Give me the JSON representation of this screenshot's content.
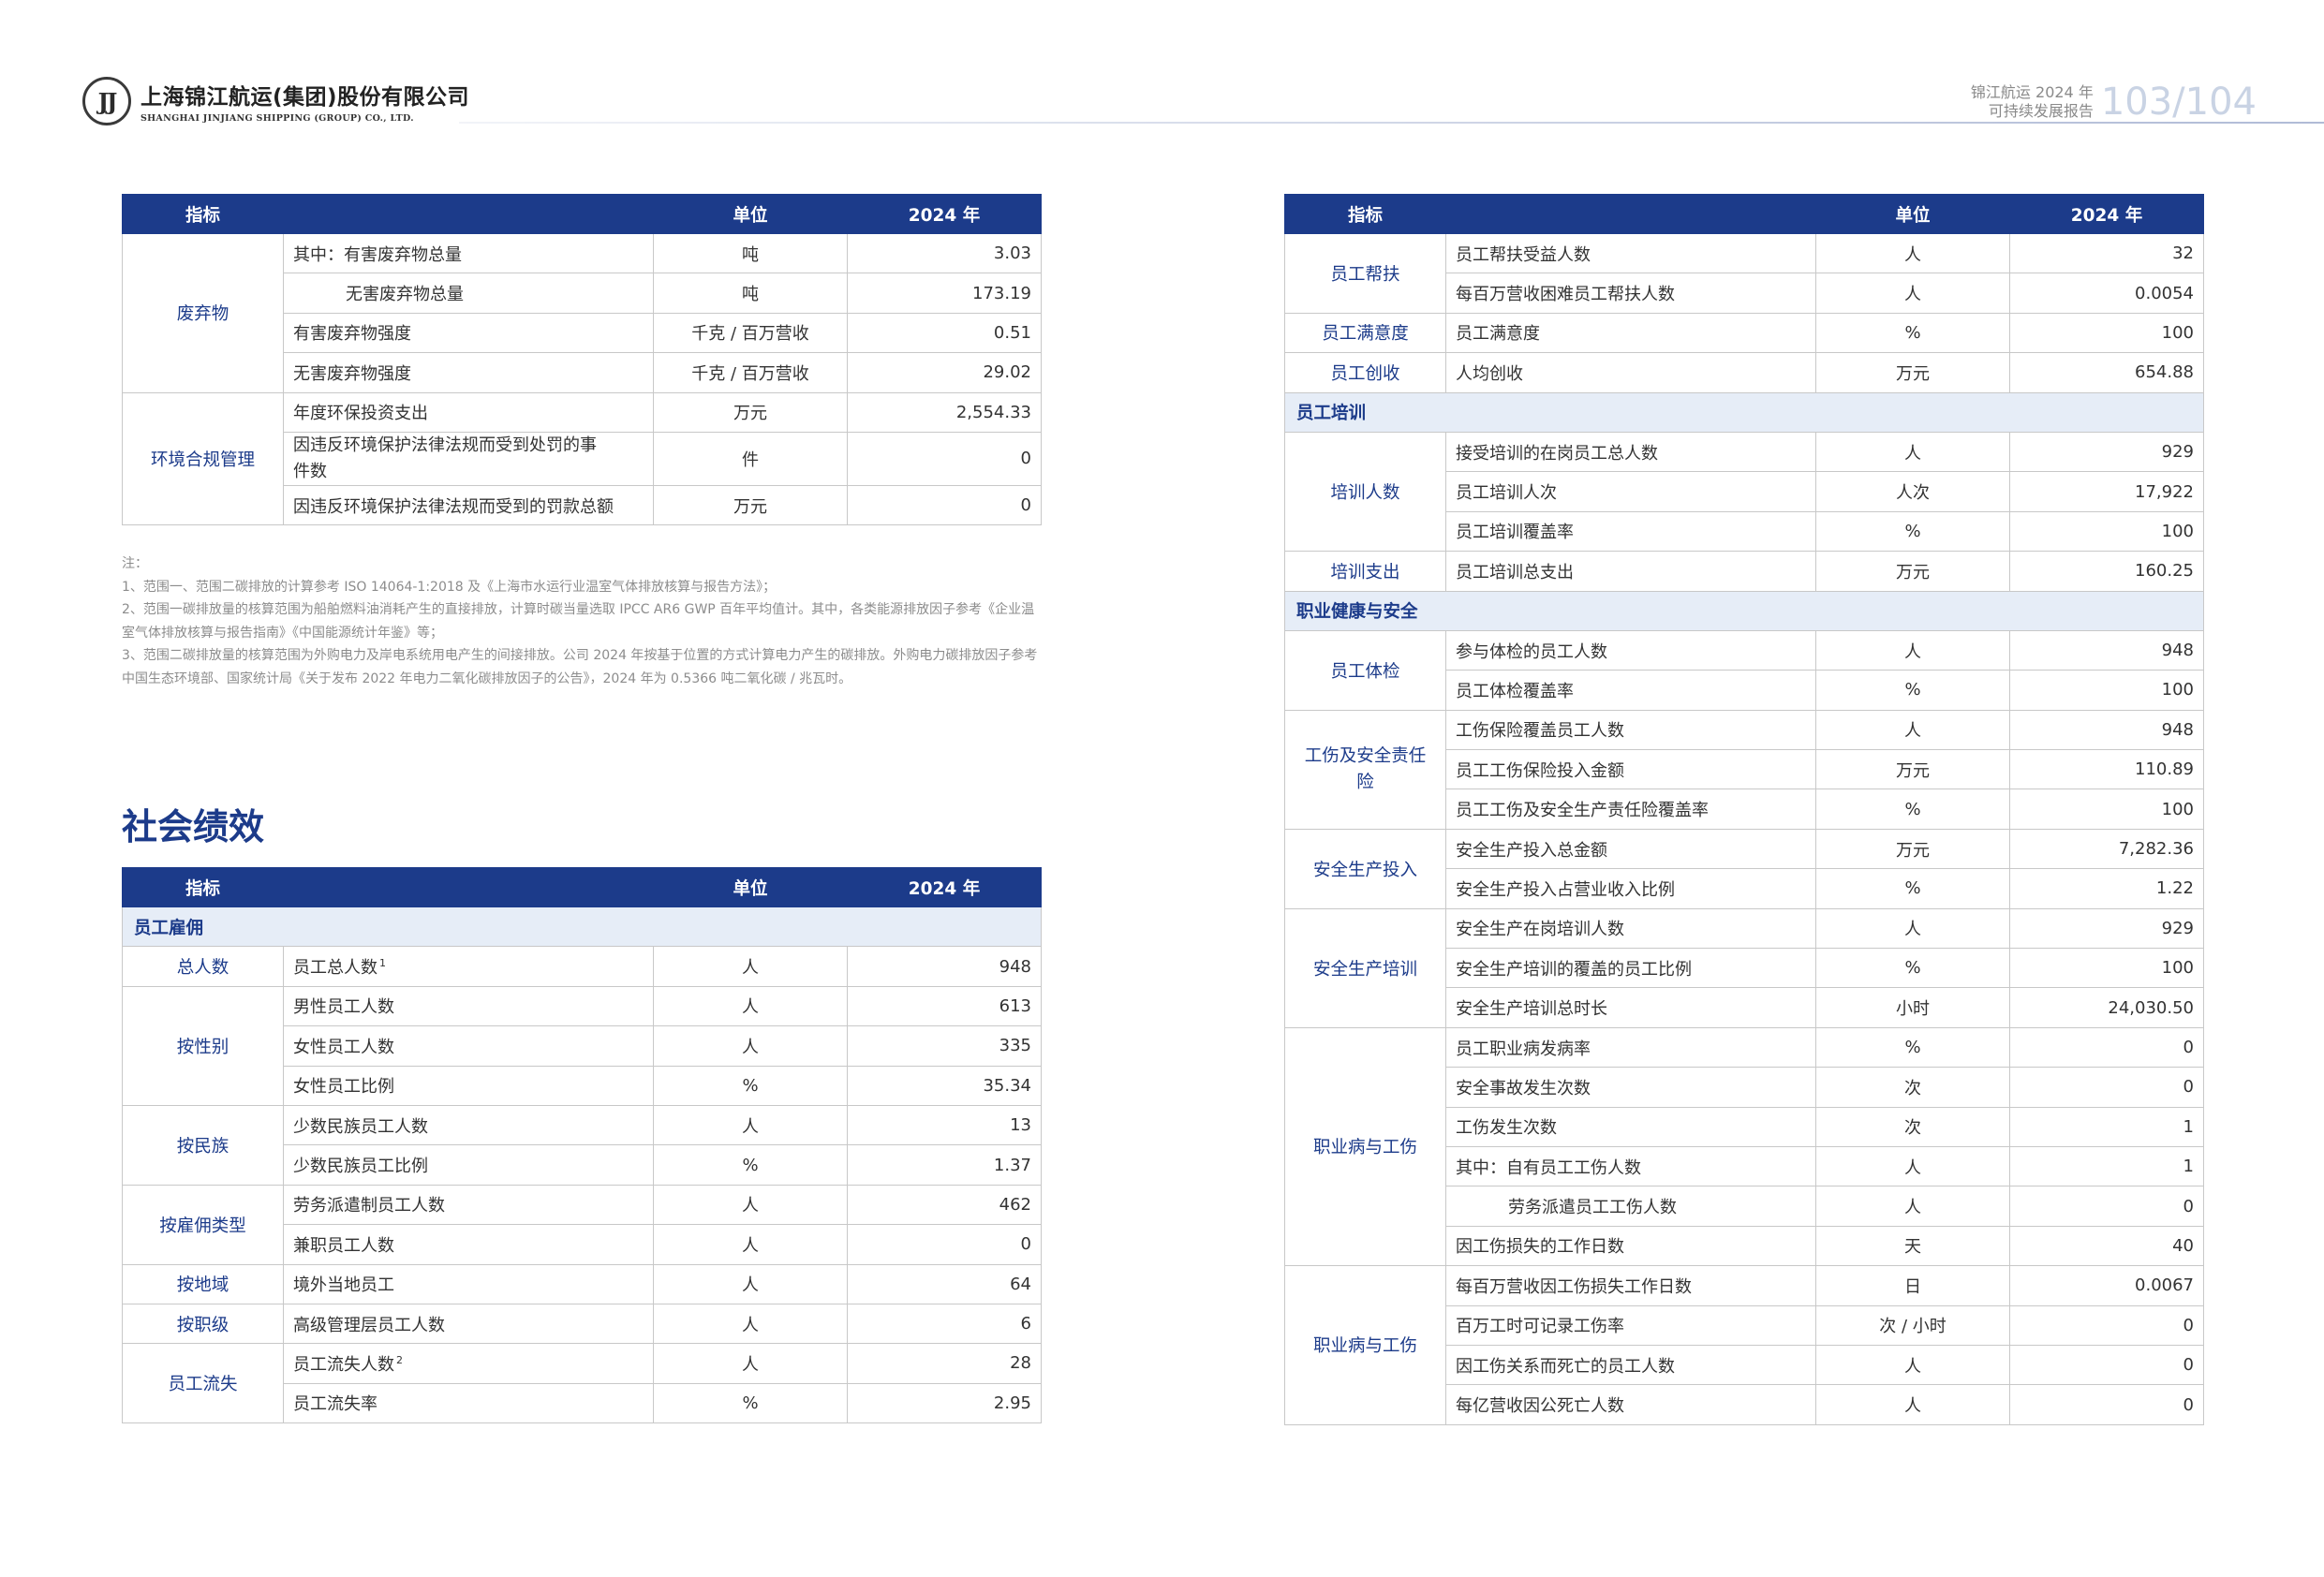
{
  "header": {
    "logo_mark": "JJ",
    "company_cn": "上海锦江航运(集团)股份有限公司",
    "company_en": "SHANGHAI JINJIANG SHIPPING (GROUP) CO., LTD.",
    "report_line1": "锦江航运 2024 年",
    "report_line2": "可持续发展报告",
    "page_numbers": "103/104"
  },
  "env_table": {
    "headers": {
      "indicator": "指标",
      "unit": "单位",
      "year": "2024 年"
    },
    "groups": [
      {
        "category": "废弃物",
        "rows": [
          {
            "label": "其中：有害废弃物总量",
            "unit": "吨",
            "value": "3.03"
          },
          {
            "label": "无害废弃物总量",
            "unit": "吨",
            "value": "173.19"
          },
          {
            "label": "有害废弃物强度",
            "unit": "千克 / 百万营收",
            "value": "0.51"
          },
          {
            "label": "无害废弃物强度",
            "unit": "千克 / 百万营收",
            "value": "29.02"
          }
        ]
      },
      {
        "category": "环境合规管理",
        "rows": [
          {
            "label": "年度环保投资支出",
            "unit": "万元",
            "value": "2,554.33"
          },
          {
            "label": "因违反环境保护法律法规而受到处罚的事件数",
            "unit": "件",
            "value": "0"
          },
          {
            "label": "因违反环境保护法律法规而受到的罚款总额",
            "unit": "万元",
            "value": "0"
          }
        ]
      }
    ]
  },
  "notes": {
    "title": "注：",
    "items": [
      "1、范围一、范围二碳排放的计算参考 ISO 14064-1:2018 及《上海市水运行业温室气体排放核算与报告方法》；",
      "2、范围一碳排放量的核算范围为船舶燃料油消耗产生的直接排放，计算时碳当量选取 IPCC AR6 GWP 百年平均值计。其中，各类能源排放因子参考《企业温室气体排放核算与报告指南》《中国能源统计年鉴》等；",
      "3、范围二碳排放量的核算范围为外购电力及岸电系统用电产生的间接排放。公司 2024 年按基于位置的方式计算电力产生的碳排放。外购电力碳排放因子参考中国生态环境部、国家统计局《关于发布 2022 年电力二氧化碳排放因子的公告》，2024 年为 0.5366 吨二氧化碳 / 兆瓦时。"
    ]
  },
  "social": {
    "title": "社会绩效",
    "headers": {
      "indicator": "指标",
      "unit": "单位",
      "year": "2024 年"
    },
    "section_label": "员工雇佣",
    "groups": [
      {
        "category": "总人数",
        "rows": [
          {
            "label": "员工总人数",
            "sup": "1",
            "unit": "人",
            "value": "948"
          }
        ]
      },
      {
        "category": "按性别",
        "rows": [
          {
            "label": "男性员工人数",
            "unit": "人",
            "value": "613"
          },
          {
            "label": "女性员工人数",
            "unit": "人",
            "value": "335"
          },
          {
            "label": "女性员工比例",
            "unit": "%",
            "value": "35.34"
          }
        ]
      },
      {
        "category": "按民族",
        "rows": [
          {
            "label": "少数民族员工人数",
            "unit": "人",
            "value": "13"
          },
          {
            "label": "少数民族员工比例",
            "unit": "%",
            "value": "1.37"
          }
        ]
      },
      {
        "category": "按雇佣类型",
        "rows": [
          {
            "label": "劳务派遣制员工人数",
            "unit": "人",
            "value": "462"
          },
          {
            "label": "兼职员工人数",
            "unit": "人",
            "value": "0"
          }
        ]
      },
      {
        "category": "按地域",
        "rows": [
          {
            "label": "境外当地员工",
            "unit": "人",
            "value": "64"
          }
        ]
      },
      {
        "category": "按职级",
        "rows": [
          {
            "label": "高级管理层员工人数",
            "unit": "人",
            "value": "6"
          }
        ]
      },
      {
        "category": "员工流失",
        "rows": [
          {
            "label": "员工流失人数",
            "sup": "2",
            "unit": "人",
            "value": "28"
          },
          {
            "label": "员工流失率",
            "unit": "%",
            "value": "2.95"
          }
        ]
      }
    ]
  },
  "right_table": {
    "headers": {
      "indicator": "指标",
      "unit": "单位",
      "year": "2024 年"
    },
    "blocks": [
      {
        "type": "group",
        "category": "员工帮扶",
        "rows": [
          {
            "label": "员工帮扶受益人数",
            "unit": "人",
            "value": "32"
          },
          {
            "label": "每百万营收困难员工帮扶人数",
            "unit": "人",
            "value": "0.0054"
          }
        ]
      },
      {
        "type": "group",
        "category": "员工满意度",
        "rows": [
          {
            "label": "员工满意度",
            "unit": "%",
            "value": "100"
          }
        ]
      },
      {
        "type": "group",
        "category": "员工创收",
        "rows": [
          {
            "label": "人均创收",
            "unit": "万元",
            "value": "654.88"
          }
        ]
      },
      {
        "type": "section",
        "label": "员工培训"
      },
      {
        "type": "group",
        "category": "培训人数",
        "rows": [
          {
            "label": "接受培训的在岗员工总人数",
            "unit": "人",
            "value": "929"
          },
          {
            "label": "员工培训人次",
            "unit": "人次",
            "value": "17,922"
          },
          {
            "label": "员工培训覆盖率",
            "unit": "%",
            "value": "100"
          }
        ]
      },
      {
        "type": "group",
        "category": "培训支出",
        "rows": [
          {
            "label": "员工培训总支出",
            "unit": "万元",
            "value": "160.25"
          }
        ]
      },
      {
        "type": "section",
        "label": "职业健康与安全"
      },
      {
        "type": "group",
        "category": "员工体检",
        "rows": [
          {
            "label": "参与体检的员工人数",
            "unit": "人",
            "value": "948"
          },
          {
            "label": "员工体检覆盖率",
            "unit": "%",
            "value": "100"
          }
        ]
      },
      {
        "type": "group",
        "category": "工伤及安全责任险",
        "rows": [
          {
            "label": "工伤保险覆盖员工人数",
            "unit": "人",
            "value": "948"
          },
          {
            "label": "员工工伤保险投入金额",
            "unit": "万元",
            "value": "110.89"
          },
          {
            "label": "员工工伤及安全生产责任险覆盖率",
            "unit": "%",
            "value": "100"
          }
        ]
      },
      {
        "type": "group",
        "category": "安全生产投入",
        "rows": [
          {
            "label": "安全生产投入总金额",
            "unit": "万元",
            "value": "7,282.36"
          },
          {
            "label": "安全生产投入占营业收入比例",
            "unit": "%",
            "value": "1.22"
          }
        ]
      },
      {
        "type": "group",
        "category": "安全生产培训",
        "rows": [
          {
            "label": "安全生产在岗培训人数",
            "unit": "人",
            "value": "929"
          },
          {
            "label": "安全生产培训的覆盖的员工比例",
            "unit": "%",
            "value": "100"
          },
          {
            "label": "安全生产培训总时长",
            "unit": "小时",
            "value": "24,030.50"
          }
        ]
      },
      {
        "type": "group",
        "category": "职业病与工伤",
        "rows": [
          {
            "label": "员工职业病发病率",
            "unit": "%",
            "value": "0"
          },
          {
            "label": "安全事故发生次数",
            "unit": "次",
            "value": "0"
          },
          {
            "label": "工伤发生次数",
            "unit": "次",
            "value": "1"
          },
          {
            "label": "其中：自有员工工伤人数",
            "unit": "人",
            "value": "1"
          },
          {
            "label": "劳务派遣员工工伤人数",
            "unit": "人",
            "value": "0",
            "indent": true
          },
          {
            "label": "因工伤损失的工作日数",
            "unit": "天",
            "value": "40"
          }
        ]
      },
      {
        "type": "group",
        "category": "职业病与工伤",
        "rows": [
          {
            "label": "每百万营收因工伤损失工作日数",
            "unit": "日",
            "value": "0.0067"
          },
          {
            "label": "百万工时可记录工伤率",
            "unit": "次 / 小时",
            "value": "0"
          },
          {
            "label": "因工伤关系而死亡的员工人数",
            "unit": "人",
            "value": "0"
          },
          {
            "label": "每亿营收因公死亡人数",
            "unit": "人",
            "value": "0"
          }
        ]
      }
    ]
  }
}
